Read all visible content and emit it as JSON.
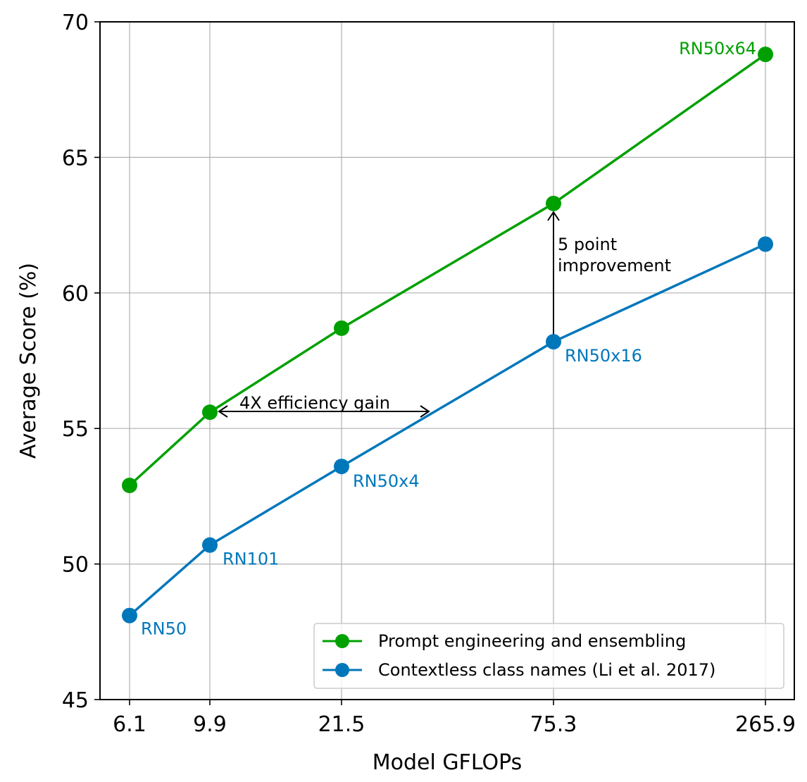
{
  "chart_data": {
    "type": "line",
    "x": [
      "6.1",
      "9.9",
      "21.5",
      "75.3",
      "265.9"
    ],
    "xlabel": "Model GFLOPs",
    "ylabel": "Average Score (%)",
    "ylim": [
      45,
      70
    ],
    "yticks": [
      "45",
      "50",
      "55",
      "60",
      "65",
      "70"
    ],
    "grid": true,
    "legend_position": "bottom-right",
    "series": [
      {
        "name": "Prompt engineering and ensembling",
        "color": "#00a000",
        "values": [
          52.9,
          55.6,
          58.7,
          63.3,
          68.8
        ],
        "point_labels": [
          "",
          "",
          "",
          "",
          "RN50x64"
        ]
      },
      {
        "name": "Contextless class names (Li et al. 2017)",
        "color": "#0077bb",
        "values": [
          48.1,
          50.7,
          53.6,
          58.2,
          61.8
        ],
        "point_labels": [
          "RN50",
          "RN101",
          "RN50x4",
          "RN50x16",
          ""
        ]
      }
    ],
    "annotations": {
      "efficiency": "4X efficiency gain",
      "improvement_line1": "5 point",
      "improvement_line2": "improvement"
    }
  }
}
